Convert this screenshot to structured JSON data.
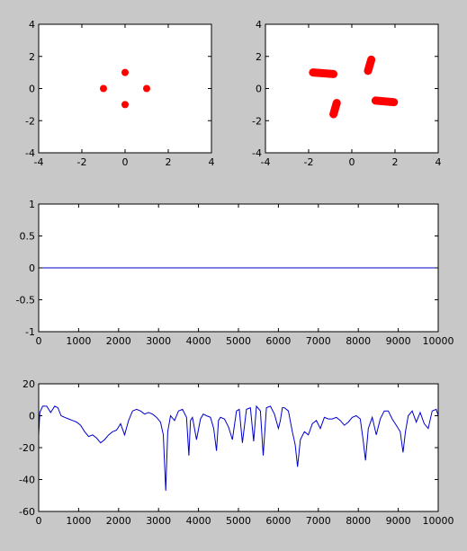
{
  "figure_background": "#c8c8c8",
  "chart_data": [
    {
      "type": "scatter",
      "xlim": [
        -4,
        4
      ],
      "ylim": [
        -4,
        4
      ],
      "xticks": [
        -4,
        -2,
        0,
        2,
        4
      ],
      "yticks": [
        -4,
        -2,
        0,
        2,
        4
      ],
      "xtick_labels": [
        "-4",
        "-2",
        "0",
        "2",
        "4"
      ],
      "ytick_labels": [
        "-4",
        "-2",
        "0",
        "2",
        "4"
      ],
      "color": "#ff0000",
      "points": [
        [
          0,
          1
        ],
        [
          -1,
          0
        ],
        [
          1,
          0
        ],
        [
          0,
          -1
        ]
      ]
    },
    {
      "type": "scatter",
      "xlim": [
        -4,
        4
      ],
      "ylim": [
        -4,
        4
      ],
      "xticks": [
        -4,
        -2,
        0,
        2,
        4
      ],
      "yticks": [
        -4,
        -2,
        0,
        2,
        4
      ],
      "xtick_labels": [
        "-4",
        "-2",
        "0",
        "2",
        "4"
      ],
      "ytick_labels": [
        "-4",
        "-2",
        "0",
        "2",
        "4"
      ],
      "color": "#ff0000",
      "strokes": [
        {
          "from": [
            -1.8,
            1.0
          ],
          "to": [
            -0.85,
            0.9
          ]
        },
        {
          "from": [
            0.75,
            1.1
          ],
          "to": [
            0.9,
            1.8
          ]
        },
        {
          "from": [
            -0.85,
            -1.6
          ],
          "to": [
            -0.7,
            -0.9
          ]
        },
        {
          "from": [
            1.1,
            -0.75
          ],
          "to": [
            1.95,
            -0.85
          ]
        }
      ]
    },
    {
      "type": "line",
      "xlim": [
        0,
        10000
      ],
      "ylim": [
        -1,
        1
      ],
      "xticks": [
        0,
        1000,
        2000,
        3000,
        4000,
        5000,
        6000,
        7000,
        8000,
        9000,
        10000
      ],
      "yticks": [
        -1,
        -0.5,
        0,
        0.5,
        1
      ],
      "xtick_labels": [
        "0",
        "1000",
        "2000",
        "3000",
        "4000",
        "5000",
        "6000",
        "7000",
        "8000",
        "9000",
        "10000"
      ],
      "ytick_labels": [
        "-1",
        "-0.5",
        "0",
        "0.5",
        "1"
      ],
      "color": "#0000cc",
      "x": [
        0,
        10000
      ],
      "y": [
        0,
        0
      ]
    },
    {
      "type": "line",
      "xlim": [
        0,
        10000
      ],
      "ylim": [
        -60,
        20
      ],
      "xticks": [
        0,
        1000,
        2000,
        3000,
        4000,
        5000,
        6000,
        7000,
        8000,
        9000,
        10000
      ],
      "yticks": [
        -60,
        -40,
        -20,
        0,
        20
      ],
      "xtick_labels": [
        "0",
        "1000",
        "2000",
        "3000",
        "4000",
        "5000",
        "6000",
        "7000",
        "8000",
        "9000",
        "10000"
      ],
      "ytick_labels": [
        "-60",
        "-40",
        "-20",
        "0",
        "20"
      ],
      "color": "#0000cc",
      "x": [
        0,
        30,
        100,
        200,
        300,
        400,
        480,
        560,
        650,
        750,
        850,
        950,
        1050,
        1150,
        1250,
        1350,
        1450,
        1550,
        1650,
        1750,
        1850,
        1950,
        2050,
        2150,
        2250,
        2350,
        2450,
        2550,
        2650,
        2750,
        2850,
        2950,
        3050,
        3120,
        3180,
        3230,
        3300,
        3400,
        3500,
        3600,
        3700,
        3760,
        3800,
        3850,
        3950,
        4050,
        4120,
        4200,
        4300,
        4380,
        4450,
        4500,
        4550,
        4650,
        4750,
        4850,
        4950,
        5020,
        5100,
        5200,
        5300,
        5380,
        5450,
        5550,
        5620,
        5700,
        5800,
        5900,
        6000,
        6050,
        6100,
        6150,
        6250,
        6350,
        6420,
        6480,
        6550,
        6650,
        6750,
        6850,
        6950,
        7050,
        7150,
        7250,
        7350,
        7450,
        7550,
        7650,
        7750,
        7850,
        7950,
        8050,
        8120,
        8180,
        8250,
        8350,
        8450,
        8550,
        8650,
        8750,
        8850,
        8950,
        9050,
        9120,
        9180,
        9250,
        9350,
        9450,
        9550,
        9650,
        9750,
        9850,
        9950,
        10000
      ],
      "y": [
        -12,
        2,
        6,
        6,
        2,
        6,
        5,
        0,
        -1,
        -2,
        -3,
        -4,
        -6,
        -10,
        -13,
        -12,
        -14,
        -17,
        -15,
        -12,
        -10,
        -9,
        -5,
        -12,
        -3,
        3,
        4,
        3,
        1,
        2,
        1,
        -1,
        -4,
        -12,
        -47,
        -10,
        0,
        -3,
        3,
        4,
        -1,
        -25,
        -3,
        -1,
        -15,
        -2,
        1,
        0,
        -1,
        -8,
        -22,
        -3,
        -1,
        -2,
        -7,
        -15,
        3,
        4,
        -17,
        4,
        5,
        -16,
        6,
        3,
        -25,
        5,
        6,
        1,
        -8,
        -3,
        5,
        5,
        3,
        -10,
        -18,
        -32,
        -15,
        -10,
        -12,
        -5,
        -3,
        -8,
        -1,
        -2,
        -2,
        -1,
        -3,
        -6,
        -4,
        -1,
        0,
        -2,
        -15,
        -28,
        -8,
        -1,
        -12,
        -2,
        3,
        3,
        -2,
        -6,
        -10,
        -23,
        -10,
        0,
        3,
        -4,
        2,
        -5,
        -8,
        3,
        4,
        0
      ]
    }
  ]
}
